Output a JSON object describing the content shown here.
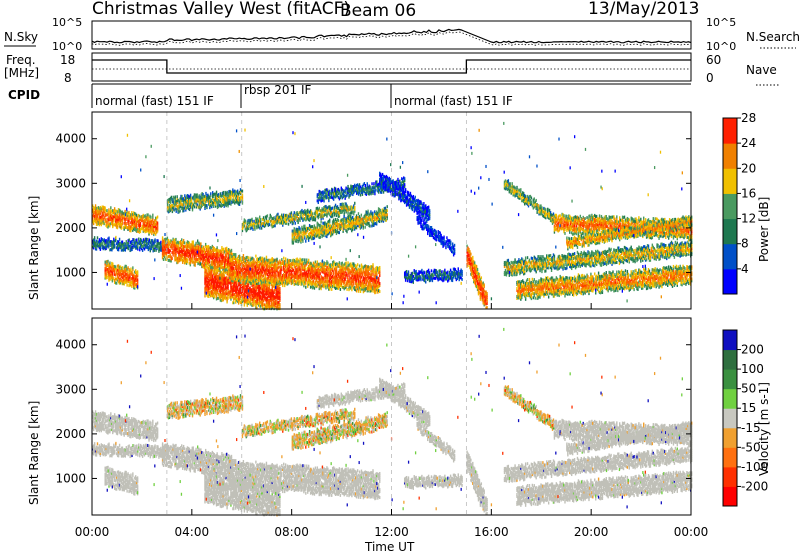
{
  "header": {
    "station": "Christmas Valley West (fitACF)",
    "beam": "Beam 06",
    "date": "13/May/2013"
  },
  "top_panels": {
    "nsky_label": "N.Sky",
    "nsky_ticks": [
      "10^5",
      "10^0"
    ],
    "nsearch_label": "N.Search",
    "nsearch_ticks": [
      "10^5",
      "10^0"
    ],
    "freq_label": "Freq.",
    "freq_unit": "[MHz]",
    "freq_ticks": [
      "18",
      "8"
    ],
    "nave_label": "Nave",
    "nave_ticks": [
      "60",
      "0"
    ],
    "cpid_label": "CPID",
    "cpid_segments": [
      {
        "label": "normal (fast) 151 IF",
        "start_h": 0,
        "end_h": 6
      },
      {
        "label": "rbsp 201 IF",
        "start_h": 6,
        "end_h": 12
      },
      {
        "label": "normal (fast) 151 IF",
        "start_h": 12,
        "end_h": 24
      }
    ]
  },
  "chart_data": [
    {
      "type": "heatmap",
      "name": "power",
      "xlabel": "Time UT",
      "ylabel": "Slant Range [km]",
      "xlim": [
        0,
        24
      ],
      "ylim": [
        180,
        4600
      ],
      "y_ticks": [
        1000,
        2000,
        3000,
        4000
      ],
      "colorbar": {
        "label": "Power [dB]",
        "ticks": [
          "4",
          "8",
          "12",
          "16",
          "20",
          "24",
          "28"
        ],
        "colors": [
          "#0000ff",
          "#0050c8",
          "#1e7850",
          "#4a9a60",
          "#f0c000",
          "#f08000",
          "#ff2000"
        ]
      }
    },
    {
      "type": "heatmap",
      "name": "velocity",
      "xlabel": "Time UT",
      "ylabel": "Slant Range [km]",
      "xlim": [
        0,
        24
      ],
      "ylim": [
        180,
        4600
      ],
      "y_ticks": [
        1000,
        2000,
        3000,
        4000
      ],
      "x_ticks": [
        "00:00",
        "04:00",
        "08:00",
        "12:00",
        "16:00",
        "20:00",
        "00:00"
      ],
      "colorbar": {
        "label": "Velocity [m s-1]",
        "ticks": [
          "200",
          "100",
          "50",
          "15",
          "-15",
          "-50",
          "-100",
          "-200"
        ],
        "colors": [
          "#1010c0",
          "#2f6f3f",
          "#3a9040",
          "#70d040",
          "#c8c8c0",
          "#f0a030",
          "#ff7010",
          "#ff3000",
          "#ff0000"
        ]
      }
    }
  ],
  "colors": {
    "ground_scatter": "#c0c0b8",
    "power_strong": "#ff2000",
    "power_mid": "#f08000",
    "power_weak": "#0050c8"
  }
}
